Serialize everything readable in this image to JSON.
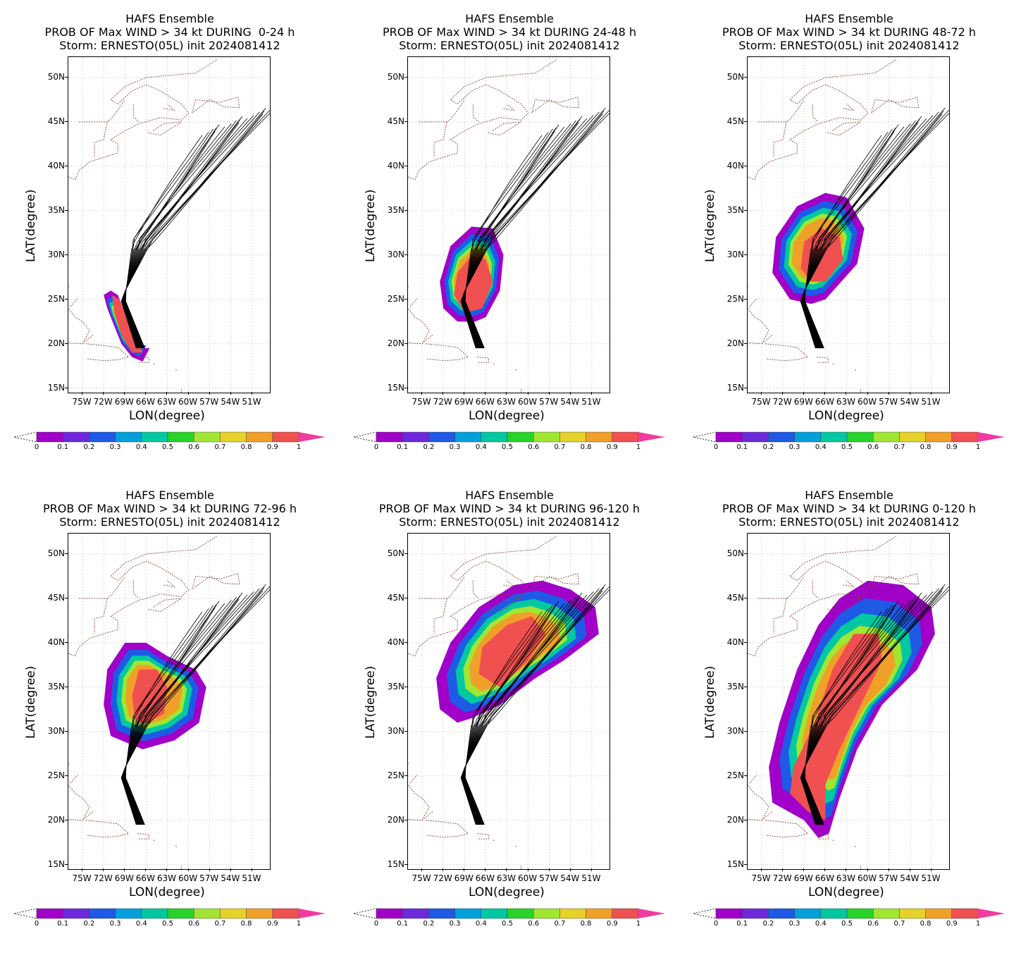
{
  "panels": [
    {
      "title_line1": "HAFS Ensemble",
      "title_line2": "PROB OF Max WIND > 34 kt DURING  0-24 h",
      "title_line3": "Storm: ERNESTO(05L) init 2024081412",
      "swath": [
        [
          66.5,
          19.5
        ],
        [
          67.5,
          21
        ],
        [
          69,
          23.5
        ],
        [
          70,
          25.5
        ],
        [
          71,
          26
        ],
        [
          72,
          25.5
        ],
        [
          71.5,
          24
        ],
        [
          70.5,
          22
        ],
        [
          69.5,
          20
        ],
        [
          68,
          18.5
        ],
        [
          66.5,
          18
        ],
        [
          65.5,
          19.5
        ]
      ],
      "core": [
        [
          67,
          20.5
        ],
        [
          68.5,
          22.5
        ],
        [
          69.8,
          25
        ],
        [
          70.8,
          25.5
        ],
        [
          70.5,
          23.5
        ],
        [
          69.5,
          21
        ],
        [
          68,
          19
        ],
        [
          66.5,
          19
        ]
      ],
      "track_range": "early"
    },
    {
      "title_line1": "HAFS Ensemble",
      "title_line2": "PROB OF Max WIND > 34 kt DURING 24-48 h",
      "title_line3": "Storm: ERNESTO(05L) init 2024081412",
      "swath": [
        [
          66,
          23
        ],
        [
          64,
          26
        ],
        [
          63.5,
          30
        ],
        [
          65,
          33
        ],
        [
          68,
          33.2
        ],
        [
          71,
          31
        ],
        [
          72.5,
          27
        ],
        [
          72,
          24
        ],
        [
          70,
          22.5
        ],
        [
          67.5,
          22.5
        ]
      ],
      "core": [
        [
          66.5,
          24
        ],
        [
          65,
          27
        ],
        [
          66,
          29.5
        ],
        [
          68,
          30
        ],
        [
          70,
          28
        ],
        [
          70.5,
          25.5
        ],
        [
          69,
          23.5
        ]
      ],
      "track_range": "early"
    },
    {
      "title_line1": "HAFS Ensemble",
      "title_line2": "PROB OF Max WIND > 34 kt DURING 48-72 h",
      "title_line3": "Storm: ERNESTO(05L) init 2024081412",
      "swath": [
        [
          66,
          25
        ],
        [
          61.5,
          29
        ],
        [
          60.5,
          33
        ],
        [
          63,
          36.5
        ],
        [
          66,
          37
        ],
        [
          70,
          35.5
        ],
        [
          73,
          32
        ],
        [
          73.5,
          28
        ],
        [
          71,
          25
        ],
        [
          68,
          24.5
        ]
      ],
      "core": [
        [
          66,
          27
        ],
        [
          63.5,
          29.5
        ],
        [
          64,
          32
        ],
        [
          66.5,
          33
        ],
        [
          69,
          31.5
        ],
        [
          69.5,
          28.5
        ],
        [
          68,
          27
        ]
      ],
      "track_range": "early"
    },
    {
      "title_line1": "HAFS Ensemble",
      "title_line2": "PROB OF Max WIND > 34 kt DURING 72-96 h",
      "title_line3": "Storm: ERNESTO(05L) init 2024081412",
      "swath": [
        [
          66.5,
          28
        ],
        [
          62,
          29
        ],
        [
          58.5,
          31
        ],
        [
          57.5,
          35
        ],
        [
          59,
          37
        ],
        [
          63,
          38.5
        ],
        [
          66,
          40
        ],
        [
          69,
          40
        ],
        [
          71.5,
          37
        ],
        [
          72,
          33
        ],
        [
          71,
          29.5
        ]
      ],
      "core": [
        [
          66,
          31
        ],
        [
          63.5,
          32
        ],
        [
          63,
          35
        ],
        [
          64.5,
          37
        ],
        [
          67,
          37
        ],
        [
          68,
          34
        ],
        [
          67.5,
          31
        ]
      ],
      "track_range": "late"
    },
    {
      "title_line1": "HAFS Ensemble",
      "title_line2": "PROB OF Max WIND > 34 kt DURING 96-120 h",
      "title_line3": "Storm: ERNESTO(05L) init 2024081412",
      "swath": [
        [
          68,
          31.5
        ],
        [
          64,
          33
        ],
        [
          59,
          36
        ],
        [
          55,
          38
        ],
        [
          50,
          41
        ],
        [
          50.5,
          44
        ],
        [
          54,
          46
        ],
        [
          58,
          47
        ],
        [
          62,
          46.5
        ],
        [
          67,
          44
        ],
        [
          71,
          40
        ],
        [
          73,
          36
        ],
        [
          72.5,
          32.5
        ],
        [
          70,
          31
        ]
      ],
      "core": [
        [
          64,
          35
        ],
        [
          60,
          38
        ],
        [
          57.5,
          41
        ],
        [
          59.5,
          43
        ],
        [
          63,
          42
        ],
        [
          66.5,
          39.5
        ],
        [
          67,
          36.5
        ]
      ],
      "track_range": "late"
    },
    {
      "title_line1": "HAFS Ensemble",
      "title_line2": "PROB OF Max WIND > 34 kt DURING 0-120 h",
      "title_line3": "Storm: ERNESTO(05L) init 2024081412",
      "swath": [
        [
          65.5,
          18.5
        ],
        [
          64,
          22.5
        ],
        [
          61.5,
          28
        ],
        [
          58,
          33
        ],
        [
          53,
          37
        ],
        [
          50.5,
          41
        ],
        [
          51,
          44
        ],
        [
          55,
          46.5
        ],
        [
          60,
          47
        ],
        [
          64,
          45
        ],
        [
          67,
          42
        ],
        [
          70,
          37
        ],
        [
          72.5,
          31
        ],
        [
          74,
          26
        ],
        [
          73.5,
          22
        ],
        [
          69,
          20
        ],
        [
          67,
          18
        ]
      ],
      "core": [
        [
          66,
          20
        ],
        [
          66,
          24
        ],
        [
          64,
          28
        ],
        [
          61,
          33
        ],
        [
          58,
          38
        ],
        [
          58.5,
          41
        ],
        [
          62,
          41
        ],
        [
          65,
          37
        ],
        [
          67.5,
          31
        ],
        [
          70.5,
          26
        ],
        [
          71,
          23
        ],
        [
          68.5,
          21
        ]
      ],
      "track_range": "full"
    }
  ],
  "axes": {
    "xlabel": "LON(degree)",
    "ylabel": "LAT(degree)",
    "lon_ticks": [
      "75W",
      "72W",
      "69W",
      "66W",
      "63W",
      "60W",
      "57W",
      "54W",
      "51W"
    ],
    "lon_values": [
      75,
      72,
      69,
      66,
      63,
      60,
      57,
      54,
      51
    ],
    "lat_ticks": [
      "50N",
      "45N",
      "40N",
      "35N",
      "30N",
      "25N",
      "20N",
      "15N"
    ],
    "lat_values": [
      50,
      45,
      40,
      35,
      30,
      25,
      20,
      15
    ],
    "lon_min_w": 77,
    "lon_max_w": 48.5,
    "lat_min": 14.5,
    "lat_max": 52.3
  },
  "colorbar": {
    "labels": [
      "0",
      "0.1",
      "0.2",
      "0.3",
      "0.4",
      "0.5",
      "0.6",
      "0.7",
      "0.8",
      "0.9",
      "1"
    ],
    "colors": [
      "#a000c8",
      "#6e28dc",
      "#1e5ae6",
      "#00a0dc",
      "#00c8a0",
      "#28d228",
      "#a0e632",
      "#e6d228",
      "#f0a028",
      "#f05050"
    ],
    "over_color": "#f03ca0"
  },
  "palette": {
    "outer": "#a000c8",
    "mid1": "#1e5ae6",
    "mid2": "#00c8a0",
    "mid3": "#a0e632",
    "mid4": "#f0a028",
    "core": "#f05050",
    "coast": "#8b4a3a",
    "grid": "#b0b0b0"
  }
}
